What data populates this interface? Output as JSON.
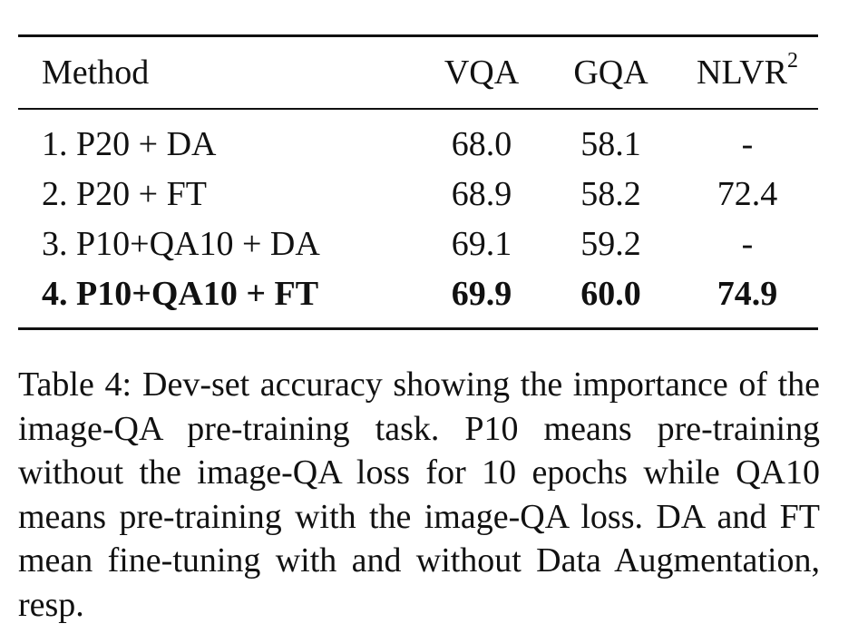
{
  "table": {
    "headers": {
      "method": "Method",
      "vqa": "VQA",
      "gqa": "GQA",
      "nlvr": "NLVR",
      "nlvr_sup": "2"
    },
    "rows": [
      {
        "method": "1. P20 + DA",
        "vqa": "68.0",
        "gqa": "58.1",
        "nlvr": "-"
      },
      {
        "method": "2. P20 + FT",
        "vqa": "68.9",
        "gqa": "58.2",
        "nlvr": "72.4"
      },
      {
        "method": "3. P10+QA10 + DA",
        "vqa": "69.1",
        "gqa": "59.2",
        "nlvr": "-"
      },
      {
        "method": "4. P10+QA10 + FT",
        "vqa": "69.9",
        "gqa": "60.0",
        "nlvr": "74.9"
      }
    ]
  },
  "caption": {
    "label": "Table 4:",
    "text": "Dev-set accuracy showing the importance of the image-QA pre-training task.  P10 means pre-training without the image-QA loss for 10 epochs while QA10 means pre-training with the image-QA loss. DA and FT mean fine-tuning with and without Data Augmentation, resp."
  }
}
